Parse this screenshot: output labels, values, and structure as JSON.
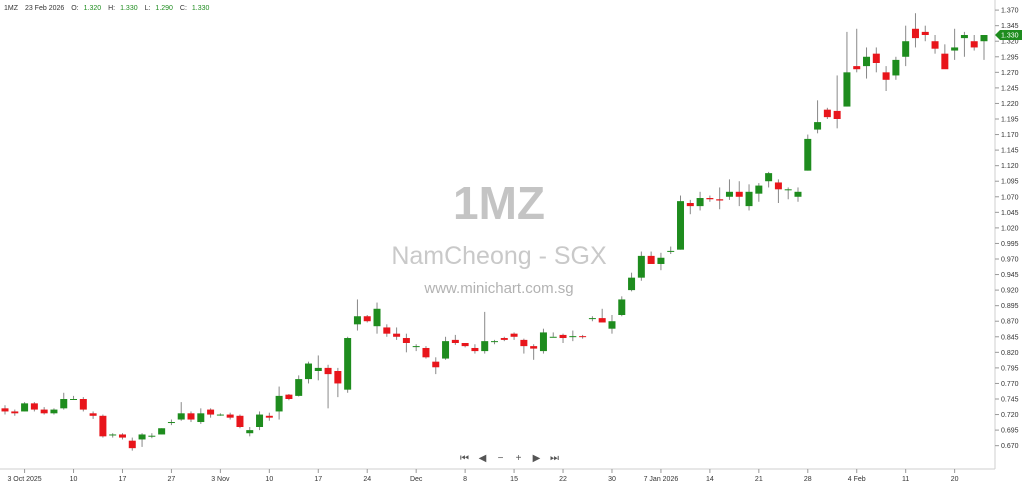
{
  "header": {
    "symbol": "1MZ",
    "date": "23 Feb 2026",
    "o_label": "O:",
    "o_value": "1.320",
    "h_label": "H:",
    "h_value": "1.330",
    "l_label": "L:",
    "l_value": "1.290",
    "c_label": "C:",
    "c_value": "1.330"
  },
  "watermark": {
    "symbol": "1MZ",
    "name": "NamCheong - SGX",
    "url": "www.minichart.com.sg"
  },
  "colors": {
    "up": "#1e8c1e",
    "down": "#e8151b",
    "wick": "#888888",
    "last_price_bg": "#1e8c1e"
  },
  "nav_icons": [
    "skip-back-icon",
    "step-back-icon",
    "zoom-out-icon",
    "zoom-in-icon",
    "step-forward-icon",
    "skip-forward-icon"
  ],
  "nav": {
    "first": "⏮",
    "prev": "◀",
    "zoom_out": "−",
    "zoom_in": "+",
    "next": "▶",
    "last": "⏭"
  },
  "chart_data": {
    "type": "candlestick",
    "ylim": [
      0.655,
      1.375
    ],
    "y_ticks": [
      "1.370",
      "1.345",
      "1.320",
      "1.295",
      "1.270",
      "1.245",
      "1.220",
      "1.195",
      "1.170",
      "1.145",
      "1.120",
      "1.095",
      "1.070",
      "1.045",
      "1.020",
      "0.995",
      "0.970",
      "0.945",
      "0.920",
      "0.895",
      "0.870",
      "0.845",
      "0.820",
      "0.795",
      "0.770",
      "0.745",
      "0.720",
      "0.695",
      "0.670"
    ],
    "last_price": "1.330",
    "x_labels": [
      {
        "i": 2,
        "label": "3 Oct 2025"
      },
      {
        "i": 7,
        "label": "10"
      },
      {
        "i": 12,
        "label": "17"
      },
      {
        "i": 17,
        "label": "27"
      },
      {
        "i": 22,
        "label": "3 Nov"
      },
      {
        "i": 27,
        "label": "10"
      },
      {
        "i": 32,
        "label": "17"
      },
      {
        "i": 37,
        "label": "24"
      },
      {
        "i": 42,
        "label": "Dec"
      },
      {
        "i": 47,
        "label": "8"
      },
      {
        "i": 52,
        "label": "15"
      },
      {
        "i": 57,
        "label": "22"
      },
      {
        "i": 62,
        "label": "30"
      },
      {
        "i": 67,
        "label": "7 Jan 2026"
      },
      {
        "i": 72,
        "label": "14"
      },
      {
        "i": 77,
        "label": "21"
      },
      {
        "i": 82,
        "label": "28"
      },
      {
        "i": 87,
        "label": "4 Feb"
      },
      {
        "i": 92,
        "label": "11"
      },
      {
        "i": 97,
        "label": "20"
      }
    ],
    "candles": [
      [
        0.73,
        0.735,
        0.72,
        0.725
      ],
      [
        0.725,
        0.728,
        0.718,
        0.722
      ],
      [
        0.725,
        0.74,
        0.725,
        0.738
      ],
      [
        0.738,
        0.74,
        0.725,
        0.728
      ],
      [
        0.728,
        0.732,
        0.72,
        0.722
      ],
      [
        0.722,
        0.73,
        0.72,
        0.728
      ],
      [
        0.73,
        0.755,
        0.728,
        0.745
      ],
      [
        0.745,
        0.75,
        0.745,
        0.745
      ],
      [
        0.745,
        0.748,
        0.725,
        0.728
      ],
      [
        0.722,
        0.725,
        0.713,
        0.718
      ],
      [
        0.718,
        0.72,
        0.683,
        0.685
      ],
      [
        0.688,
        0.69,
        0.683,
        0.688
      ],
      [
        0.688,
        0.69,
        0.68,
        0.683
      ],
      [
        0.678,
        0.683,
        0.662,
        0.666
      ],
      [
        0.68,
        0.69,
        0.668,
        0.688
      ],
      [
        0.686,
        0.69,
        0.682,
        0.686
      ],
      [
        0.688,
        0.698,
        0.688,
        0.698
      ],
      [
        0.708,
        0.712,
        0.703,
        0.708
      ],
      [
        0.712,
        0.74,
        0.71,
        0.722
      ],
      [
        0.722,
        0.725,
        0.708,
        0.712
      ],
      [
        0.708,
        0.73,
        0.705,
        0.722
      ],
      [
        0.728,
        0.73,
        0.715,
        0.72
      ],
      [
        0.72,
        0.722,
        0.718,
        0.72
      ],
      [
        0.72,
        0.723,
        0.712,
        0.715
      ],
      [
        0.718,
        0.72,
        0.698,
        0.7
      ],
      [
        0.69,
        0.7,
        0.685,
        0.695
      ],
      [
        0.7,
        0.725,
        0.695,
        0.72
      ],
      [
        0.718,
        0.723,
        0.71,
        0.715
      ],
      [
        0.725,
        0.765,
        0.712,
        0.75
      ],
      [
        0.752,
        0.753,
        0.743,
        0.745
      ],
      [
        0.75,
        0.783,
        0.749,
        0.777
      ],
      [
        0.777,
        0.805,
        0.77,
        0.802
      ],
      [
        0.79,
        0.815,
        0.775,
        0.795
      ],
      [
        0.795,
        0.8,
        0.73,
        0.785
      ],
      [
        0.79,
        0.795,
        0.748,
        0.77
      ],
      [
        0.76,
        0.845,
        0.755,
        0.843
      ],
      [
        0.865,
        0.905,
        0.855,
        0.878
      ],
      [
        0.878,
        0.88,
        0.868,
        0.87
      ],
      [
        0.862,
        0.9,
        0.85,
        0.89
      ],
      [
        0.86,
        0.865,
        0.845,
        0.85
      ],
      [
        0.85,
        0.86,
        0.84,
        0.845
      ],
      [
        0.843,
        0.85,
        0.82,
        0.835
      ],
      [
        0.83,
        0.833,
        0.822,
        0.83
      ],
      [
        0.827,
        0.83,
        0.81,
        0.812
      ],
      [
        0.805,
        0.812,
        0.785,
        0.796
      ],
      [
        0.81,
        0.845,
        0.808,
        0.838
      ],
      [
        0.84,
        0.848,
        0.832,
        0.835
      ],
      [
        0.835,
        0.835,
        0.828,
        0.83
      ],
      [
        0.827,
        0.833,
        0.818,
        0.822
      ],
      [
        0.822,
        0.885,
        0.818,
        0.838
      ],
      [
        0.838,
        0.84,
        0.833,
        0.838
      ],
      [
        0.843,
        0.845,
        0.838,
        0.84
      ],
      [
        0.85,
        0.852,
        0.84,
        0.845
      ],
      [
        0.84,
        0.842,
        0.818,
        0.83
      ],
      [
        0.83,
        0.833,
        0.808,
        0.826
      ],
      [
        0.822,
        0.858,
        0.818,
        0.852
      ],
      [
        0.845,
        0.852,
        0.845,
        0.845
      ],
      [
        0.848,
        0.85,
        0.835,
        0.843
      ],
      [
        0.846,
        0.855,
        0.838,
        0.846
      ],
      [
        0.846,
        0.848,
        0.842,
        0.845
      ],
      [
        0.875,
        0.878,
        0.87,
        0.875
      ],
      [
        0.875,
        0.89,
        0.87,
        0.868
      ],
      [
        0.858,
        0.88,
        0.85,
        0.87
      ],
      [
        0.88,
        0.91,
        0.878,
        0.905
      ],
      [
        0.92,
        0.948,
        0.918,
        0.94
      ],
      [
        0.94,
        0.982,
        0.935,
        0.975
      ],
      [
        0.975,
        0.982,
        0.965,
        0.962
      ],
      [
        0.962,
        0.98,
        0.952,
        0.972
      ],
      [
        0.982,
        0.99,
        0.978,
        0.983
      ],
      [
        0.985,
        1.072,
        0.985,
        1.063
      ],
      [
        1.06,
        1.065,
        1.042,
        1.055
      ],
      [
        1.055,
        1.078,
        1.048,
        1.068
      ],
      [
        1.068,
        1.072,
        1.062,
        1.066
      ],
      [
        1.066,
        1.085,
        1.05,
        1.064
      ],
      [
        1.07,
        1.098,
        1.065,
        1.078
      ],
      [
        1.078,
        1.095,
        1.055,
        1.07
      ],
      [
        1.055,
        1.09,
        1.048,
        1.078
      ],
      [
        1.075,
        1.092,
        1.062,
        1.088
      ],
      [
        1.095,
        1.11,
        1.085,
        1.108
      ],
      [
        1.093,
        1.098,
        1.06,
        1.082
      ],
      [
        1.082,
        1.085,
        1.066,
        1.082
      ],
      [
        1.07,
        1.085,
        1.062,
        1.078
      ],
      [
        1.112,
        1.17,
        1.112,
        1.163
      ],
      [
        1.178,
        1.225,
        1.172,
        1.19
      ],
      [
        1.21,
        1.213,
        1.195,
        1.198
      ],
      [
        1.208,
        1.265,
        1.18,
        1.195
      ],
      [
        1.215,
        1.335,
        1.215,
        1.27
      ],
      [
        1.28,
        1.34,
        1.27,
        1.275
      ],
      [
        1.28,
        1.31,
        1.26,
        1.295
      ],
      [
        1.3,
        1.31,
        1.27,
        1.285
      ],
      [
        1.27,
        1.28,
        1.24,
        1.258
      ],
      [
        1.265,
        1.295,
        1.258,
        1.29
      ],
      [
        1.295,
        1.345,
        1.28,
        1.32
      ],
      [
        1.34,
        1.365,
        1.31,
        1.325
      ],
      [
        1.335,
        1.345,
        1.32,
        1.33
      ],
      [
        1.32,
        1.33,
        1.3,
        1.308
      ],
      [
        1.3,
        1.315,
        1.28,
        1.275
      ],
      [
        1.305,
        1.34,
        1.29,
        1.31
      ],
      [
        1.325,
        1.335,
        1.295,
        1.33
      ],
      [
        1.32,
        1.33,
        1.305,
        1.31
      ],
      [
        1.32,
        1.33,
        1.29,
        1.33
      ]
    ]
  }
}
